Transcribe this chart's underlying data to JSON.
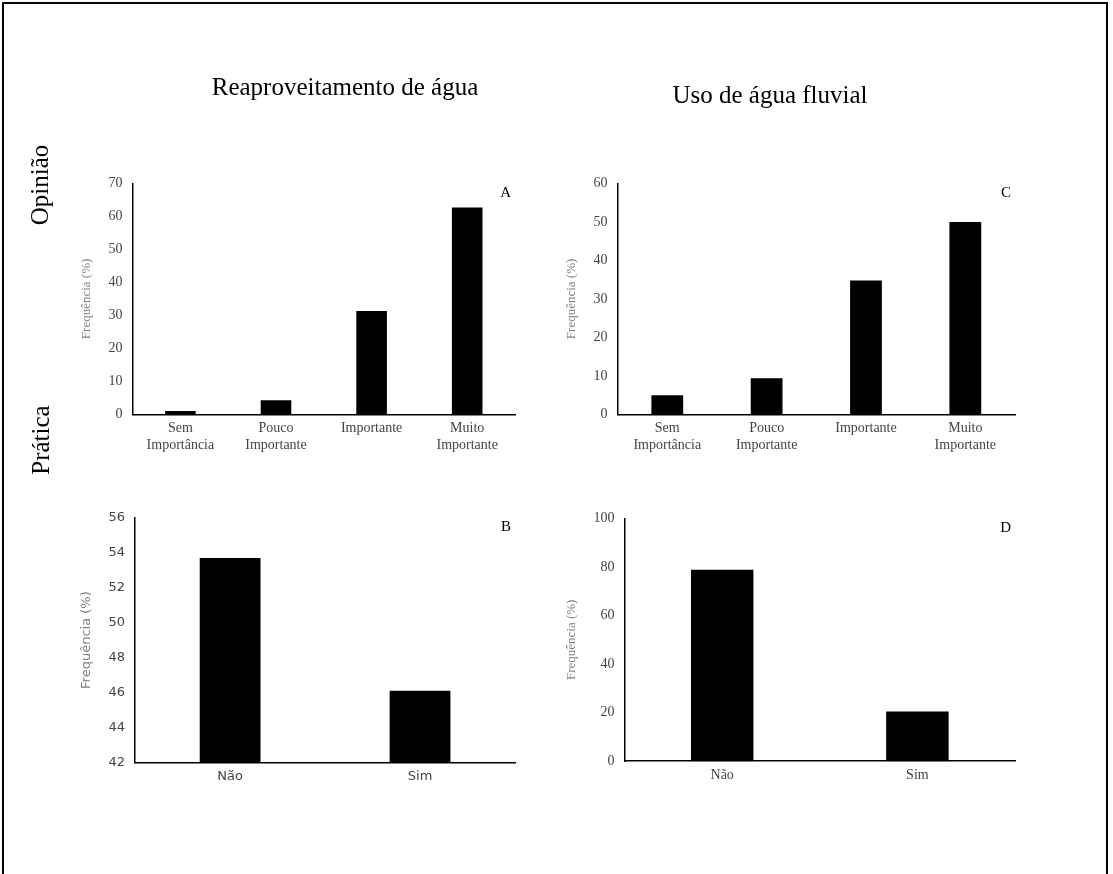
{
  "chart_data": [
    {
      "type": "bar",
      "title": "Reaproveitamento de água",
      "ylabel": "Frequência (%)",
      "categories": [
        "Sem Importância",
        "Pouco Importante",
        "Importante",
        "Muito Importante"
      ],
      "values": [
        1,
        4.3,
        31.3,
        62.7
      ],
      "color": "#000000",
      "ylim": [
        0,
        70
      ],
      "yticks": [
        0,
        10,
        20,
        30,
        40,
        50,
        60,
        70
      ],
      "grid": false,
      "legend": false,
      "annotations": [
        "A",
        "Opinião"
      ]
    },
    {
      "type": "bar",
      "title": "Uso de água fluvial",
      "ylabel": "Frequência (%)",
      "categories": [
        "Sem Importância",
        "Pouco Importante",
        "Importante",
        "Muito Importante"
      ],
      "values": [
        5,
        9.4,
        34.8,
        50
      ],
      "color": "#000000",
      "ylim": [
        0,
        60
      ],
      "yticks": [
        0,
        10,
        20,
        30,
        40,
        50,
        60
      ],
      "grid": false,
      "legend": false,
      "annotations": [
        "C"
      ]
    },
    {
      "type": "bar",
      "ylabel": "Frequência (%)",
      "categories": [
        "Não",
        "Sim"
      ],
      "values": [
        53.7,
        46.1
      ],
      "color": "#000000",
      "ylim": [
        42,
        56
      ],
      "yticks": [
        42,
        44,
        46,
        48,
        50,
        52,
        54,
        56
      ],
      "grid": false,
      "legend": false,
      "annotations": [
        "B",
        "Prática"
      ]
    },
    {
      "type": "bar",
      "ylabel": "Frequência (%)",
      "categories": [
        "Não",
        "Sim"
      ],
      "values": [
        78.8,
        20.5
      ],
      "color": "#000000",
      "ylim": [
        0,
        100
      ],
      "yticks": [
        0,
        20,
        40,
        60,
        80,
        100
      ],
      "grid": false,
      "legend": false,
      "annotations": [
        "D"
      ]
    }
  ]
}
